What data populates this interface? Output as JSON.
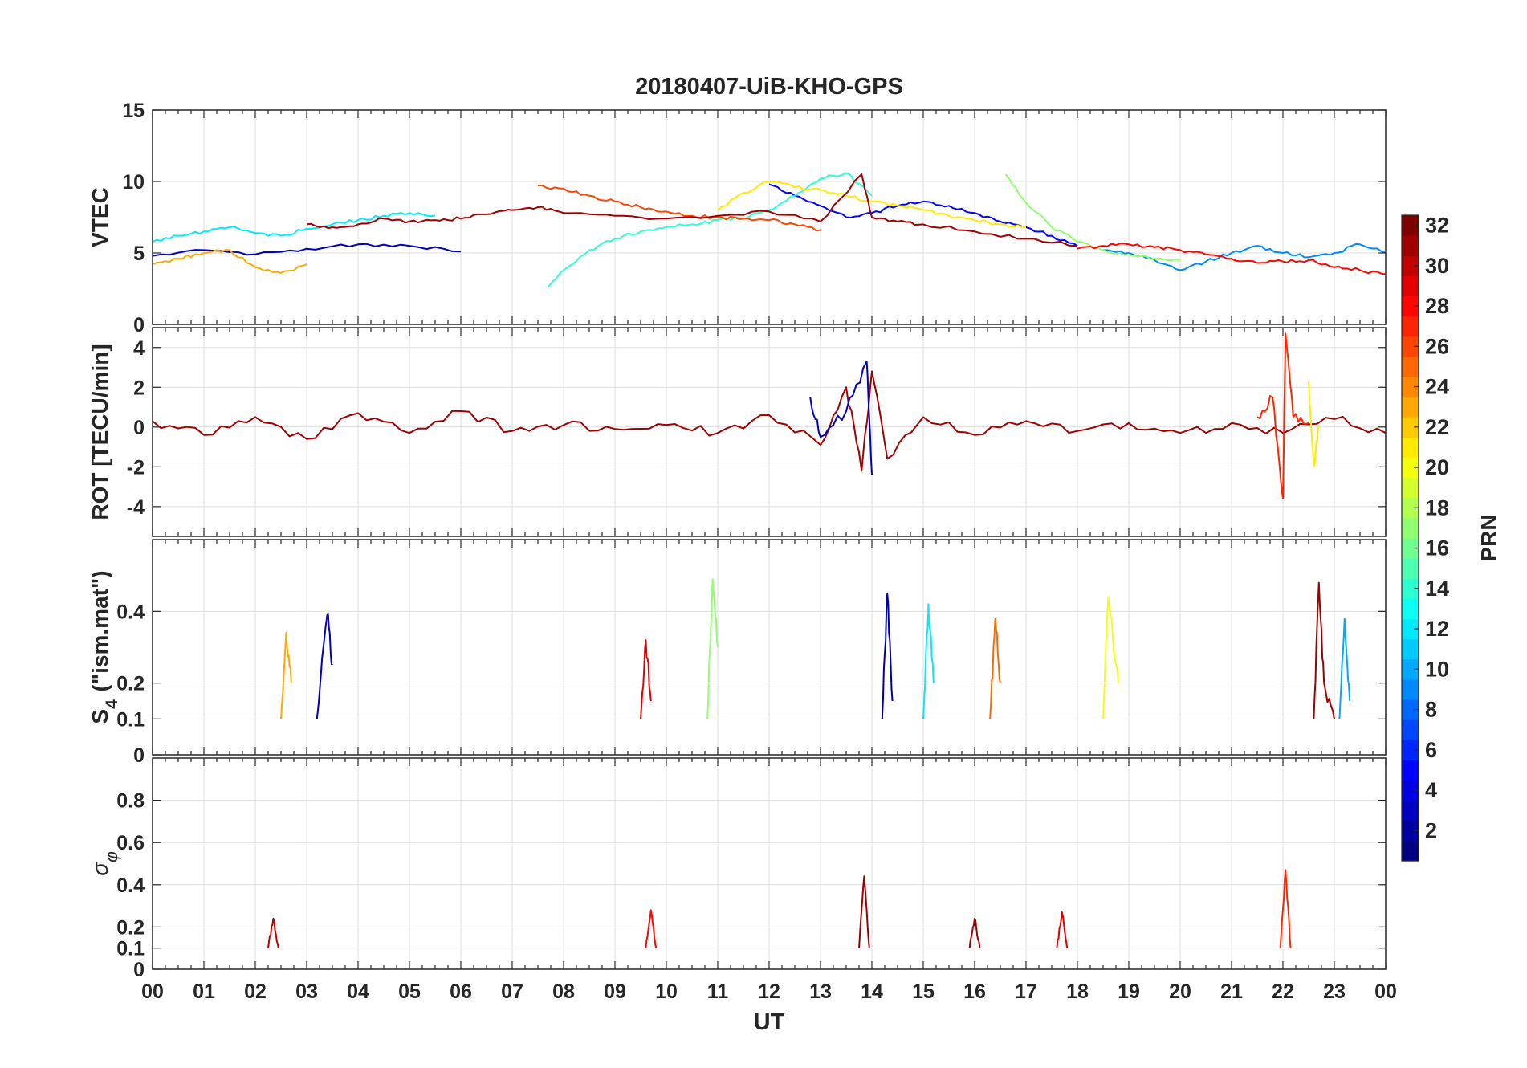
{
  "chart_data": {
    "type": "line",
    "title": "20180407-UiB-KHO-GPS",
    "xlabel": "UT",
    "x_ticks": [
      "00",
      "01",
      "02",
      "03",
      "04",
      "05",
      "06",
      "07",
      "08",
      "09",
      "10",
      "11",
      "12",
      "13",
      "14",
      "15",
      "16",
      "17",
      "18",
      "19",
      "20",
      "21",
      "22",
      "23",
      "00"
    ],
    "xlim": [
      0,
      24
    ],
    "grid": true,
    "colorbar": {
      "label": "PRN",
      "range": [
        1,
        32
      ],
      "ticks": [
        2,
        4,
        6,
        8,
        10,
        12,
        14,
        16,
        18,
        20,
        22,
        24,
        26,
        28,
        30,
        32
      ],
      "tick_labels": [
        "2",
        "4",
        "6",
        "8",
        "10",
        "12",
        "14",
        "16",
        "18",
        "20",
        "22",
        "24",
        "26",
        "28",
        "30",
        "32"
      ],
      "colormap": "jet",
      "placement": "right"
    },
    "panels": [
      {
        "ylabel": "VTEC",
        "ylim": [
          0,
          15
        ],
        "yticks": [
          0,
          5,
          10,
          15
        ],
        "ytick_labels": [
          "0",
          "5",
          "10",
          "15"
        ],
        "series": [
          {
            "prn": 3,
            "x": [
              0,
              1,
              2,
              3,
              4,
              5,
              6
            ],
            "y": [
              4.8,
              5.2,
              4.9,
              5.3,
              5.6,
              5.5,
              5.1
            ]
          },
          {
            "prn": 5,
            "x": [
              12.0,
              12.5,
              13.0,
              13.5,
              14.0,
              14.5,
              15.0,
              15.5,
              16.0,
              16.5,
              17.0,
              17.5,
              18.0
            ],
            "y": [
              9.8,
              9.0,
              8.3,
              7.5,
              7.8,
              8.3,
              8.6,
              8.3,
              7.8,
              7.2,
              6.8,
              6.2,
              5.5
            ]
          },
          {
            "prn": 9,
            "x": [
              18.5,
              19.0,
              19.5,
              20.0,
              20.5,
              21.0,
              21.5,
              22.0,
              22.5,
              23.0,
              23.5,
              24.0
            ],
            "y": [
              5.2,
              5.0,
              4.5,
              3.8,
              4.4,
              5.0,
              5.5,
              5.0,
              4.7,
              5.0,
              5.6,
              5.0
            ]
          },
          {
            "prn": 12,
            "x": [
              0,
              0.5,
              1.0,
              1.5,
              2.0,
              2.5,
              3.0,
              3.5,
              4.0,
              4.5,
              5.0,
              5.5
            ],
            "y": [
              5.8,
              6.2,
              6.5,
              6.8,
              6.4,
              6.2,
              6.7,
              7.0,
              7.3,
              7.6,
              7.8,
              7.6
            ]
          },
          {
            "prn": 14,
            "x": [
              7.7,
              8.0,
              8.5,
              9.0,
              9.5,
              10.0,
              10.5,
              11.0,
              11.5,
              12.0,
              12.5,
              13.0,
              13.5,
              14.0
            ],
            "y": [
              2.6,
              3.8,
              5.2,
              6.0,
              6.5,
              6.8,
              7.0,
              7.3,
              7.4,
              8.0,
              9.0,
              10.2,
              10.6,
              9.0
            ]
          },
          {
            "prn": 17,
            "x": [
              16.6,
              17.0,
              17.5,
              18.0,
              18.5,
              19.0,
              19.5,
              20.0
            ],
            "y": [
              10.5,
              8.5,
              6.8,
              5.8,
              5.2,
              4.9,
              4.6,
              4.5
            ]
          },
          {
            "prn": 21,
            "x": [
              11.0,
              11.5,
              12.0,
              12.5,
              13.0,
              13.5,
              14.0,
              14.5,
              15.0,
              15.5,
              16.0,
              16.5,
              17.0
            ],
            "y": [
              8.0,
              9.2,
              10.0,
              9.6,
              9.4,
              9.0,
              8.6,
              8.3,
              8.0,
              7.6,
              7.3,
              7.0,
              6.8
            ]
          },
          {
            "prn": 23,
            "x": [
              0,
              0.5,
              1.0,
              1.5,
              2.0,
              2.5,
              3.0
            ],
            "y": [
              4.2,
              4.6,
              5.0,
              5.2,
              4.0,
              3.6,
              4.2
            ]
          },
          {
            "prn": 26,
            "x": [
              7.5,
              8.0,
              8.5,
              9.0,
              9.5,
              10.0,
              10.5,
              11.0,
              11.5,
              12.0,
              12.5,
              13.0
            ],
            "y": [
              9.7,
              9.5,
              9.0,
              8.6,
              8.2,
              7.9,
              7.6,
              7.5,
              7.4,
              7.3,
              7.0,
              6.6
            ]
          },
          {
            "prn": 28,
            "x": [
              18.0,
              18.5,
              19.0,
              19.5,
              20.0,
              20.5,
              21.0,
              21.5,
              22.0,
              22.5,
              23.0,
              23.5,
              24.0
            ],
            "y": [
              5.3,
              5.5,
              5.6,
              5.4,
              5.2,
              4.9,
              4.6,
              4.3,
              4.4,
              4.5,
              4.0,
              3.8,
              3.5
            ]
          },
          {
            "prn": 31,
            "x": [
              3.0,
              3.5,
              4.0,
              4.5,
              5.0,
              5.5,
              6.0,
              6.5,
              7.0,
              7.5,
              8.0,
              9.0,
              10.0,
              11.0,
              12.0,
              13.0,
              13.8,
              14.0,
              14.5,
              15.0,
              16.0,
              17.0,
              18.0
            ],
            "y": [
              7.0,
              6.8,
              7.0,
              7.4,
              7.2,
              7.3,
              7.4,
              7.7,
              8.0,
              8.2,
              7.8,
              7.6,
              7.4,
              7.6,
              7.9,
              7.2,
              10.5,
              7.5,
              7.2,
              7.0,
              6.5,
              6.0,
              5.5
            ]
          }
        ]
      },
      {
        "ylabel": "ROT [TECU/min]",
        "ylim": [
          -5.5,
          5
        ],
        "yticks": [
          -4,
          -2,
          0,
          2,
          4
        ],
        "ytick_labels": [
          "-4",
          "-2",
          "0",
          "2",
          "4"
        ],
        "series": [
          {
            "prn": 31,
            "x": [
              0,
              1,
              2,
              3,
              4,
              5,
              6,
              7,
              8,
              9,
              10,
              11,
              12,
              13,
              13.5,
              13.8,
              14.0,
              14.3,
              15,
              16,
              17,
              18,
              19,
              20,
              21,
              22,
              23,
              24
            ],
            "y": [
              0.3,
              -0.4,
              0.5,
              -0.6,
              0.7,
              -0.3,
              0.8,
              -0.2,
              0.1,
              -0.1,
              0.1,
              -0.3,
              0.6,
              -0.9,
              2.0,
              -2.2,
              2.8,
              -1.6,
              0.5,
              -0.4,
              0.3,
              -0.2,
              0.2,
              -0.3,
              0.2,
              -0.3,
              0.4,
              -0.3
            ]
          },
          {
            "prn": 27,
            "x": [
              21.5,
              21.8,
              22.0,
              22.05,
              22.2,
              22.5
            ],
            "y": [
              0.5,
              1.5,
              -3.6,
              4.7,
              0.5,
              0.2
            ]
          },
          {
            "prn": 21,
            "x": [
              22.5,
              22.6,
              22.7
            ],
            "y": [
              2.3,
              -2.0,
              0.1
            ]
          },
          {
            "prn": 3,
            "x": [
              12.8,
              13.0,
              13.5,
              13.9,
              14.0
            ],
            "y": [
              1.5,
              -0.5,
              0.8,
              3.3,
              -2.4
            ]
          }
        ]
      },
      {
        "ylabel": "S4 (\"ism.mat\")",
        "ylabel_main": "S",
        "ylabel_sub": "4",
        "ylabel_rest": " (\"ism.mat\")",
        "ylim": [
          0,
          0.6
        ],
        "yticks": [
          0,
          0.1,
          0.2,
          0.4
        ],
        "ytick_labels": [
          "0",
          "0.1",
          "0.2",
          "0.4"
        ],
        "series": [
          {
            "prn": 3,
            "x": [
              3.2,
              3.4,
              3.5
            ],
            "y": [
              0.1,
              0.39,
              0.25
            ]
          },
          {
            "prn": 2,
            "x": [
              14.2,
              14.3,
              14.4
            ],
            "y": [
              0.1,
              0.45,
              0.15
            ]
          },
          {
            "prn": 12,
            "x": [
              15.0,
              15.1,
              15.2
            ],
            "y": [
              0.1,
              0.42,
              0.2
            ]
          },
          {
            "prn": 17,
            "x": [
              10.8,
              10.9,
              11.0
            ],
            "y": [
              0.1,
              0.49,
              0.3
            ]
          },
          {
            "prn": 20,
            "x": [
              18.5,
              18.6,
              18.8
            ],
            "y": [
              0.1,
              0.44,
              0.2
            ]
          },
          {
            "prn": 23,
            "x": [
              2.5,
              2.6,
              2.7
            ],
            "y": [
              0.1,
              0.34,
              0.2
            ]
          },
          {
            "prn": 25,
            "x": [
              16.3,
              16.4,
              16.5
            ],
            "y": [
              0.1,
              0.38,
              0.2
            ]
          },
          {
            "prn": 29,
            "x": [
              9.5,
              9.6,
              9.7
            ],
            "y": [
              0.1,
              0.32,
              0.15
            ]
          },
          {
            "prn": 31,
            "x": [
              22.6,
              22.7,
              22.8,
              23.0
            ],
            "y": [
              0.1,
              0.48,
              0.2,
              0.1
            ]
          },
          {
            "prn": 10,
            "x": [
              23.1,
              23.2,
              23.3
            ],
            "y": [
              0.1,
              0.38,
              0.15
            ]
          }
        ]
      },
      {
        "ylabel": "σφ",
        "ylabel_main": "σ",
        "ylabel_sub": "φ",
        "ylim": [
          0,
          1
        ],
        "yticks": [
          0,
          0.1,
          0.2,
          0.4,
          0.6,
          0.8
        ],
        "ytick_labels": [
          "0",
          "0.1",
          "0.2",
          "0.4",
          "0.6",
          "0.8"
        ],
        "series": [
          {
            "prn": 31,
            "x": [
              13.75,
              13.85,
              13.95
            ],
            "y": [
              0.1,
              0.44,
              0.1
            ]
          },
          {
            "prn": 27,
            "x": [
              21.95,
              22.05,
              22.15
            ],
            "y": [
              0.1,
              0.47,
              0.1
            ]
          },
          {
            "prn": 28,
            "x": [
              9.6,
              9.7,
              9.8
            ],
            "y": [
              0.1,
              0.28,
              0.1
            ]
          },
          {
            "prn": 30,
            "x": [
              2.25,
              2.35,
              2.45
            ],
            "y": [
              0.1,
              0.24,
              0.1
            ]
          },
          {
            "prn": 29,
            "x": [
              17.6,
              17.7,
              17.8
            ],
            "y": [
              0.1,
              0.27,
              0.1
            ]
          },
          {
            "prn": 31,
            "x": [
              15.9,
              16.0,
              16.1
            ],
            "y": [
              0.1,
              0.24,
              0.1
            ]
          }
        ]
      }
    ]
  }
}
